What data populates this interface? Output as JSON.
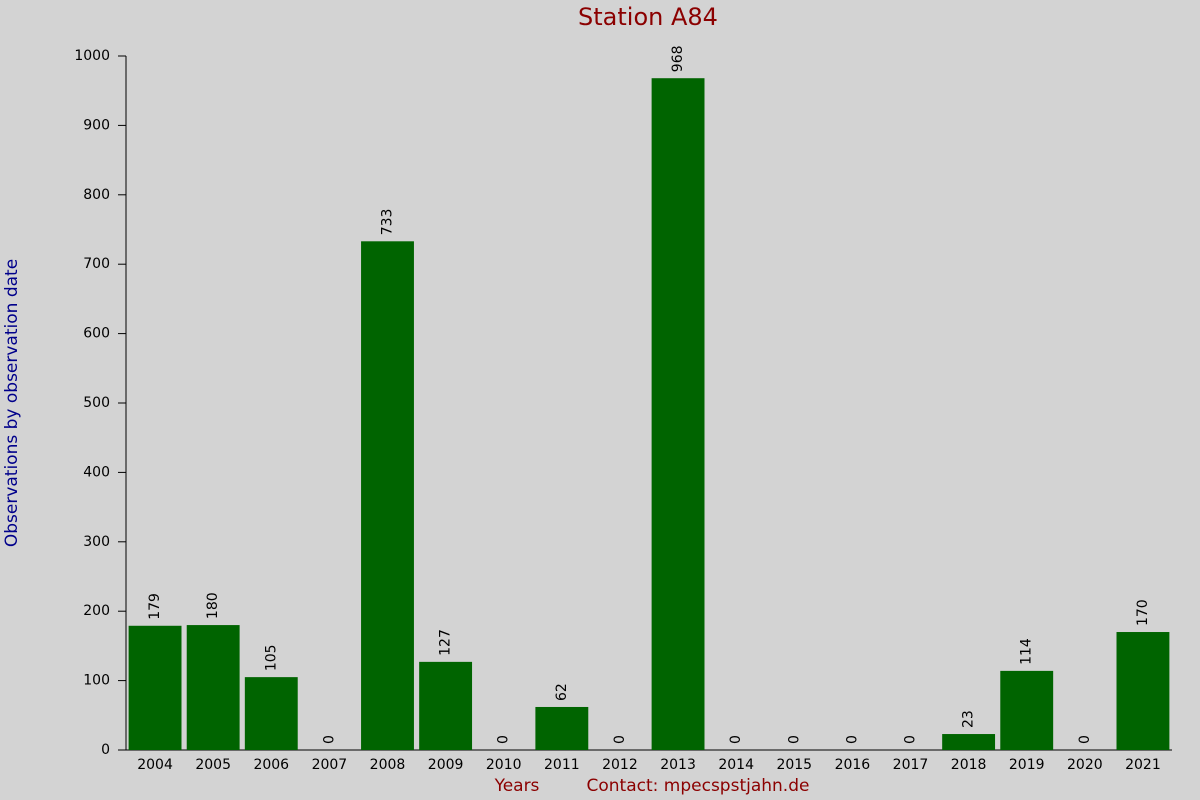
{
  "chart_data": {
    "type": "bar",
    "title": "Station A84",
    "x_label": "Years",
    "y_label": "Observations by observation date",
    "note": "Contact: mpecspstjahn.de",
    "categories": [
      "2004",
      "2005",
      "2006",
      "2007",
      "2008",
      "2009",
      "2010",
      "2011",
      "2012",
      "2013",
      "2014",
      "2015",
      "2016",
      "2017",
      "2018",
      "2019",
      "2020",
      "2021"
    ],
    "values": [
      179,
      180,
      105,
      0,
      733,
      127,
      0,
      62,
      0,
      968,
      0,
      0,
      0,
      0,
      23,
      114,
      0,
      170
    ],
    "color": "#006400",
    "ylim": [
      0,
      1000
    ],
    "yticks": [
      0,
      100,
      200,
      300,
      400,
      500,
      600,
      700,
      800,
      900,
      1000
    ]
  }
}
